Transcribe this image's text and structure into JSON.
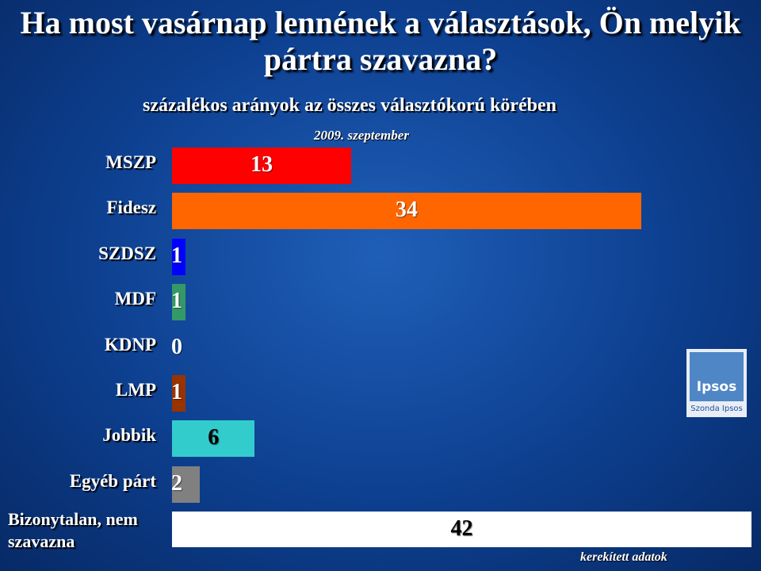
{
  "chart_data": {
    "type": "hbar",
    "title": "Ha most vasárnap lennének a választások, Ön melyik pártra szavazna?",
    "subtitle": "százalékos arányok az összes választókorú körében",
    "date": "2009. szeptember",
    "footnote": "kerekített adatok",
    "logo": {
      "name": "Ipsos",
      "caption": "Szonda Ipsos"
    },
    "categories": [
      "MSZP",
      "Fidesz",
      "SZDSZ",
      "MDF",
      "KDNP",
      "LMP",
      "Jobbik",
      "Egyéb párt",
      "Bizonytalan, nem szavazna"
    ],
    "values": [
      13,
      34,
      1,
      1,
      0,
      1,
      6,
      2,
      42
    ],
    "colors": [
      "#ff0000",
      "#ff6600",
      "#0000ff",
      "#339966",
      null,
      "#993300",
      "#33cccc",
      "#808080",
      "#ffffff"
    ]
  }
}
